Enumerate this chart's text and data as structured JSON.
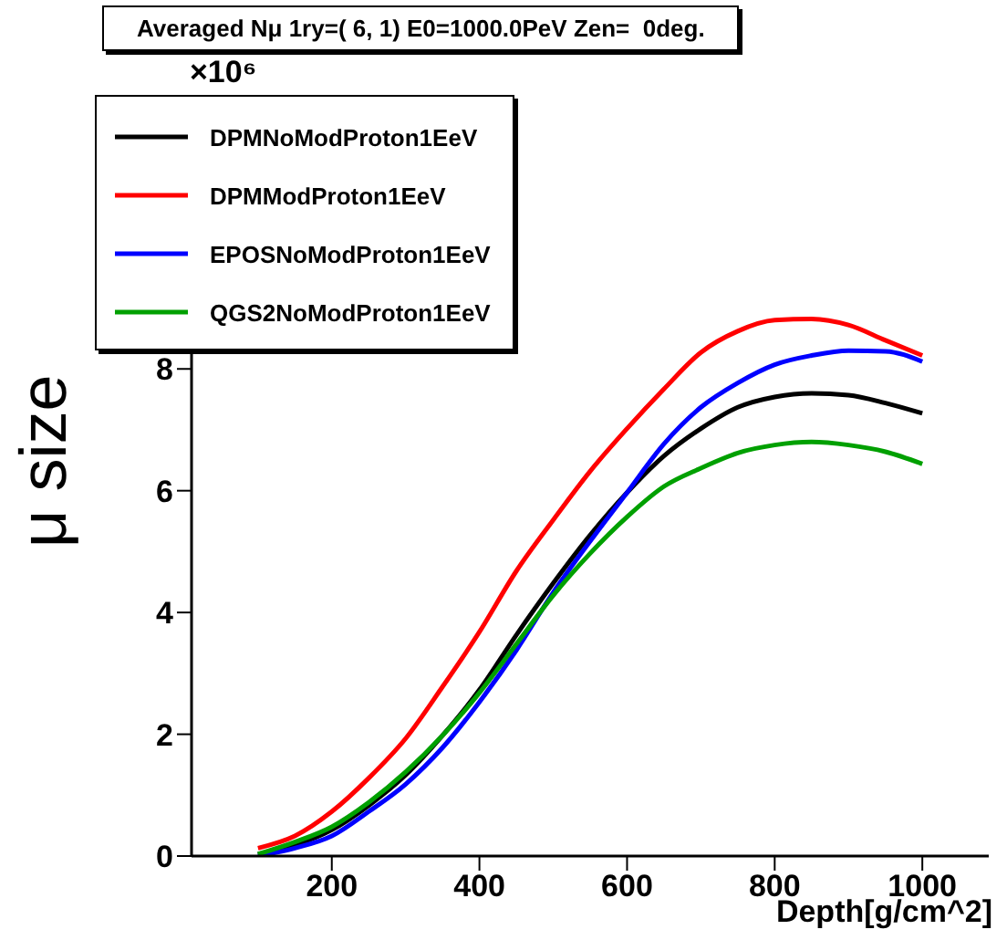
{
  "chart_data": {
    "type": "line",
    "title": "Averaged Nμ 1ry=( 6, 1) E0=1000.0PeV Zen=  0deg.",
    "xlabel": "Depth[g/cm^2]",
    "ylabel": "μ size",
    "annotations": [
      "×10⁶"
    ],
    "x": [
      100,
      150,
      200,
      250,
      300,
      350,
      400,
      450,
      500,
      550,
      600,
      650,
      700,
      750,
      800,
      850,
      900,
      950,
      1000
    ],
    "series": [
      {
        "name": "DPMNoModProton1EeV",
        "color": "#000000",
        "values": [
          0.03,
          0.18,
          0.43,
          0.83,
          1.33,
          1.98,
          2.73,
          3.63,
          4.48,
          5.27,
          5.97,
          6.57,
          7.02,
          7.37,
          7.54,
          7.6,
          7.57,
          7.44,
          7.27
        ]
      },
      {
        "name": "DPMModProton1EeV",
        "color": "#ff0000",
        "values": [
          0.13,
          0.33,
          0.73,
          1.28,
          1.93,
          2.78,
          3.68,
          4.68,
          5.52,
          6.32,
          7.02,
          7.67,
          8.27,
          8.62,
          8.8,
          8.82,
          8.72,
          8.47,
          8.22
        ]
      },
      {
        "name": "EPOSNoModProton1EeV",
        "color": "#0000ff",
        "values": [
          0.0,
          0.13,
          0.33,
          0.73,
          1.18,
          1.78,
          2.53,
          3.38,
          4.33,
          5.17,
          5.97,
          6.77,
          7.37,
          7.77,
          8.07,
          8.22,
          8.3,
          8.29,
          8.12
        ]
      },
      {
        "name": "QGS2NoModProton1EeV",
        "color": "#00a000",
        "values": [
          0.03,
          0.23,
          0.48,
          0.88,
          1.38,
          1.98,
          2.68,
          3.48,
          4.28,
          4.97,
          5.57,
          6.07,
          6.37,
          6.62,
          6.75,
          6.8,
          6.75,
          6.64,
          6.44
        ]
      }
    ],
    "xlim": [
      10,
      1090
    ],
    "xticks": [
      200,
      400,
      600,
      800,
      1000
    ],
    "ylim": [
      0,
      12.5
    ],
    "yticks": [
      0,
      2,
      4,
      6,
      8
    ],
    "grid": false,
    "legend": "top left",
    "marker": "none",
    "line_style": "solid"
  }
}
